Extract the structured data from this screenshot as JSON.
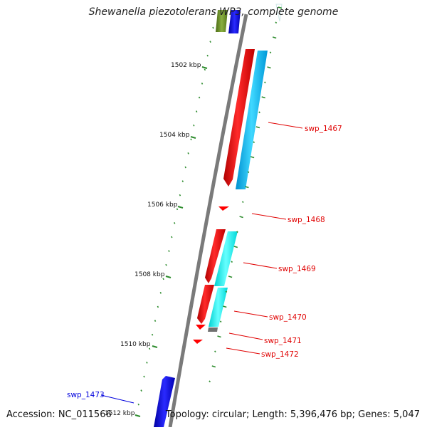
{
  "header": {
    "title": "Shewanella piezotolerans WP3, complete genome"
  },
  "footer": {
    "accession": "Accession: NC_011566",
    "summary": "Topology: circular; Length: 5,396,476 bp; Genes: 5,047"
  },
  "colors": {
    "backbone": "#8c8c8c",
    "tick": "#2d8c2d",
    "gene_label_red": "#e00000",
    "gene_label_blue": "#0000dd",
    "gene_red": "#ff0000",
    "gene_cyan": "#1ec8ff",
    "gene_cyan_light": "#33ffff",
    "gene_blue": "#0000ff",
    "gene_olive": "#6b8e23",
    "gene_gray": "#707070"
  },
  "axis": {
    "unit": "kbp",
    "tick_labels": [
      "1502 kbp",
      "1504 kbp",
      "1506 kbp",
      "1508 kbp",
      "1510 kbp",
      "1512 kbp"
    ]
  },
  "genes": [
    {
      "id": "swp_1467",
      "label": "swp_1467",
      "color": "red"
    },
    {
      "id": "swp_1468",
      "label": "swp_1468",
      "color": "red"
    },
    {
      "id": "swp_1469",
      "label": "swp_1469",
      "color": "red"
    },
    {
      "id": "swp_1470",
      "label": "swp_1470",
      "color": "red"
    },
    {
      "id": "swp_1471",
      "label": "swp_1471",
      "color": "red"
    },
    {
      "id": "swp_1472",
      "label": "swp_1472",
      "color": "red"
    },
    {
      "id": "swp_1473",
      "label": "swp_1473",
      "color": "blue"
    }
  ]
}
